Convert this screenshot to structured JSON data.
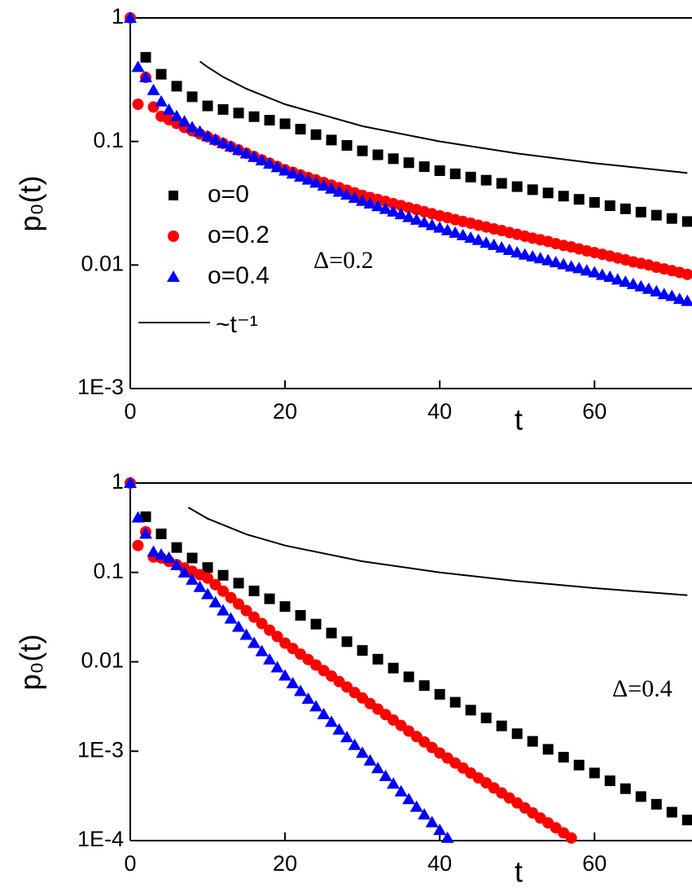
{
  "chart_data": [
    {
      "type": "scatter",
      "xlabel": "t",
      "ylabel": "p₀(t)",
      "annotation": "Δ=0.2",
      "xlim": [
        0,
        72.6
      ],
      "xticks": [
        0,
        20,
        40,
        60
      ],
      "ylim": [
        0.001,
        1
      ],
      "yticks": [
        1,
        0.1,
        0.01,
        {
          "value": 0.001,
          "label": "1E-3"
        }
      ],
      "yscale": "log",
      "grid": false,
      "legend": "center left",
      "series": [
        {
          "name": "o=0",
          "color": "#000000",
          "marker": "square",
          "x": [
            2,
            4,
            6,
            8,
            10,
            12,
            14,
            16,
            18,
            20,
            22,
            24,
            26,
            28,
            30,
            32,
            34,
            36,
            38,
            40,
            42,
            44,
            46,
            48,
            50,
            52,
            54,
            56,
            58,
            60,
            62,
            64,
            66,
            68,
            70,
            72
          ],
          "values": [
            0.48,
            0.35,
            0.28,
            0.23,
            0.194,
            0.1815,
            0.1698,
            0.1588,
            0.1486,
            0.139,
            0.1257,
            0.1136,
            0.1027,
            0.0929,
            0.084,
            0.078,
            0.0725,
            0.0673,
            0.0625,
            0.058,
            0.0547,
            0.0515,
            0.0486,
            0.0458,
            0.0431,
            0.0407,
            0.0383,
            0.0361,
            0.034,
            0.0321,
            0.0302,
            0.0285,
            0.0268,
            0.0253,
            0.0238,
            0.0225
          ]
        },
        {
          "name": "o=0.2",
          "color": "#ff0000",
          "marker": "circle",
          "x": [
            0,
            1,
            2,
            3,
            4,
            5,
            6,
            7,
            8,
            9,
            10,
            11,
            12,
            13,
            14,
            15,
            16,
            17,
            18,
            19,
            20,
            21,
            22,
            23,
            24,
            25,
            26,
            27,
            28,
            29,
            30,
            31,
            32,
            33,
            34,
            35,
            36,
            37,
            38,
            39,
            40,
            41,
            42,
            43,
            44,
            45,
            46,
            47,
            48,
            49,
            50,
            51,
            52,
            53,
            54,
            55,
            56,
            57,
            58,
            59,
            60,
            61,
            62,
            63,
            64,
            65,
            66,
            67,
            68,
            69,
            70,
            71,
            72
          ],
          "values": [
            1,
            0.2,
            0.33,
            0.19,
            0.16,
            0.15,
            0.14,
            0.13,
            0.122,
            0.115,
            0.109,
            0.1025,
            0.0964,
            0.0907,
            0.0853,
            0.0802,
            0.0754,
            0.0709,
            0.0667,
            0.0627,
            0.059,
            0.0563,
            0.0536,
            0.0511,
            0.0488,
            0.0465,
            0.0443,
            0.0423,
            0.0403,
            0.0384,
            0.0366,
            0.0352,
            0.0339,
            0.0327,
            0.0314,
            0.0303,
            0.0291,
            0.0281,
            0.027,
            0.026,
            0.025,
            0.0242,
            0.0233,
            0.0225,
            0.0218,
            0.021,
            0.0203,
            0.0196,
            0.019,
            0.0183,
            0.0177,
            0.0171,
            0.0165,
            0.016,
            0.0155,
            0.0149,
            0.0144,
            0.014,
            0.0135,
            0.013,
            0.0126,
            0.0122,
            0.0118,
            0.0114,
            0.011,
            0.0106,
            0.0103,
            0.01,
            0.0096,
            0.0093,
            0.009,
            0.0087,
            0.0084
          ]
        },
        {
          "name": "o=0.4",
          "color": "#0000ff",
          "marker": "triangle",
          "x": [
            0,
            1,
            2,
            3,
            4,
            5,
            6,
            7,
            8,
            9,
            10,
            11,
            12,
            13,
            14,
            15,
            16,
            17,
            18,
            19,
            20,
            21,
            22,
            23,
            24,
            25,
            26,
            27,
            28,
            29,
            30,
            31,
            32,
            33,
            34,
            35,
            36,
            37,
            38,
            39,
            40,
            41,
            42,
            43,
            44,
            45,
            46,
            47,
            48,
            49,
            50,
            51,
            52,
            53,
            54,
            55,
            56,
            57,
            58,
            59,
            60,
            61,
            62,
            63,
            64,
            65,
            66,
            67,
            68,
            69,
            70,
            71,
            72
          ],
          "values": [
            1,
            0.4,
            0.33,
            0.26,
            0.21,
            0.18,
            0.16,
            0.145,
            0.13,
            0.12,
            0.11,
            0.1032,
            0.0968,
            0.0908,
            0.0851,
            0.0799,
            0.0749,
            0.0703,
            0.0659,
            0.0618,
            0.058,
            0.0548,
            0.0518,
            0.049,
            0.0463,
            0.0438,
            0.0414,
            0.0391,
            0.037,
            0.0349,
            0.033,
            0.0314,
            0.0299,
            0.0284,
            0.027,
            0.0257,
            0.0244,
            0.0232,
            0.0221,
            0.021,
            0.02,
            0.0191,
            0.0182,
            0.0174,
            0.0166,
            0.0159,
            0.0151,
            0.0145,
            0.0138,
            0.0132,
            0.0126,
            0.0121,
            0.0117,
            0.0113,
            0.0109,
            0.0105,
            0.0101,
            0.0097,
            0.0094,
            0.009,
            0.0087,
            0.0083,
            0.008,
            0.0076,
            0.0073,
            0.007,
            0.0067,
            0.0064,
            0.0061,
            0.0058,
            0.0056,
            0.0053,
            0.0051
          ]
        },
        {
          "name": "~t⁻¹",
          "color": "#000000",
          "marker": "line",
          "x": [
            9,
            10,
            12,
            15,
            20,
            30,
            40,
            50,
            60,
            72
          ],
          "values": [
            0.444,
            0.4,
            0.333,
            0.267,
            0.2,
            0.133,
            0.1,
            0.08,
            0.0667,
            0.0556
          ]
        }
      ]
    },
    {
      "type": "scatter",
      "xlabel": "t",
      "ylabel": "p₀(t)",
      "annotation": "Δ=0.4",
      "xlim": [
        0,
        72.6
      ],
      "xticks": [
        0,
        20,
        40,
        60
      ],
      "ylim": [
        0.0001,
        1
      ],
      "yticks": [
        1,
        0.1,
        0.01,
        {
          "value": 0.001,
          "label": "1E-3"
        },
        {
          "value": 0.0001,
          "label": "1E-4"
        }
      ],
      "yscale": "log",
      "grid": false,
      "series": [
        {
          "color": "#000000",
          "marker": "square",
          "x": [
            2,
            4,
            6,
            8,
            10,
            12,
            14,
            16,
            18,
            20,
            22,
            24,
            26,
            28,
            30,
            32,
            34,
            36,
            38,
            40,
            42,
            44,
            46,
            48,
            50,
            52,
            54,
            56,
            58,
            60,
            62,
            64,
            66,
            68,
            70,
            72
          ],
          "values": [
            0.42,
            0.27,
            0.19,
            0.145,
            0.1135,
            0.0929,
            0.0759,
            0.0621,
            0.0507,
            0.0415,
            0.0331,
            0.0264,
            0.021,
            0.0168,
            0.0134,
            0.0107,
            0.00851,
            0.00679,
            0.00542,
            0.00433,
            0.00353,
            0.00288,
            0.00236,
            0.00192,
            0.00157,
            0.00129,
            0.00105,
            0.000857,
            0.0007,
            0.000571,
            0.000467,
            0.000381,
            0.000311,
            0.000255,
            0.000208,
            0.00017
          ]
        },
        {
          "color": "#ff0000",
          "marker": "circle",
          "x": [
            0,
            1,
            2,
            3,
            4,
            5,
            6,
            7,
            8,
            9,
            10,
            11,
            12,
            13,
            14,
            15,
            16,
            17,
            18,
            19,
            20,
            21,
            22,
            23,
            24,
            25,
            26,
            27,
            28,
            29,
            30,
            31,
            32,
            33,
            34,
            35,
            36,
            37,
            38,
            39,
            40,
            41,
            42,
            43,
            44,
            45,
            46,
            47,
            48,
            49,
            50,
            51,
            52,
            53,
            54,
            55,
            56,
            57
          ],
          "values": [
            1,
            0.2,
            0.285,
            0.149,
            0.145,
            0.133,
            0.122,
            0.112,
            0.103,
            0.0942,
            0.0863,
            0.0729,
            0.0618,
            0.0522,
            0.0443,
            0.0374,
            0.0316,
            0.0268,
            0.0226,
            0.0192,
            0.0162,
            0.0141,
            0.0122,
            0.0106,
            0.0092,
            0.00798,
            0.00693,
            0.00601,
            0.00522,
            0.00453,
            0.00394,
            0.00341,
            0.00296,
            0.00257,
            0.00223,
            0.00194,
            0.00168,
            0.00146,
            0.00127,
            0.0011,
            0.000955,
            0.000839,
            0.000738,
            0.000649,
            0.00057,
            0.000502,
            0.000442,
            0.000388,
            0.000341,
            0.0003,
            0.000264,
            0.000232,
            0.000204,
            0.000179,
            0.000158,
            0.000139,
            0.000122,
            0.000107
          ]
        },
        {
          "color": "#0000ff",
          "marker": "triangle",
          "x": [
            0,
            1,
            2,
            3,
            4,
            5,
            6,
            7,
            8,
            9,
            10,
            11,
            12,
            13,
            14,
            15,
            16,
            17,
            18,
            19,
            20,
            21,
            22,
            23,
            24,
            25,
            26,
            27,
            28,
            29,
            30,
            31,
            32,
            33,
            34,
            35,
            36,
            37,
            38,
            39,
            40,
            41
          ],
          "values": [
            1,
            0.41,
            0.27,
            0.17,
            0.158,
            0.145,
            0.12,
            0.0995,
            0.0826,
            0.0686,
            0.0569,
            0.0461,
            0.0374,
            0.0303,
            0.0246,
            0.02,
            0.0162,
            0.0131,
            0.0106,
            0.00863,
            0.007,
            0.00574,
            0.0047,
            0.00385,
            0.00316,
            0.00259,
            0.00212,
            0.00174,
            0.00143,
            0.00117,
            0.000957,
            0.000783,
            0.000643,
            0.000526,
            0.000432,
            0.000354,
            0.00029,
            0.000238,
            0.000195,
            0.00016,
            0.000131,
            0.000107
          ]
        },
        {
          "color": "#000000",
          "marker": "line",
          "x": [
            7.5,
            10,
            15,
            20,
            30,
            40,
            50,
            60,
            72
          ],
          "values": [
            0.533,
            0.4,
            0.267,
            0.2,
            0.133,
            0.1,
            0.08,
            0.0667,
            0.0556
          ]
        }
      ]
    }
  ]
}
